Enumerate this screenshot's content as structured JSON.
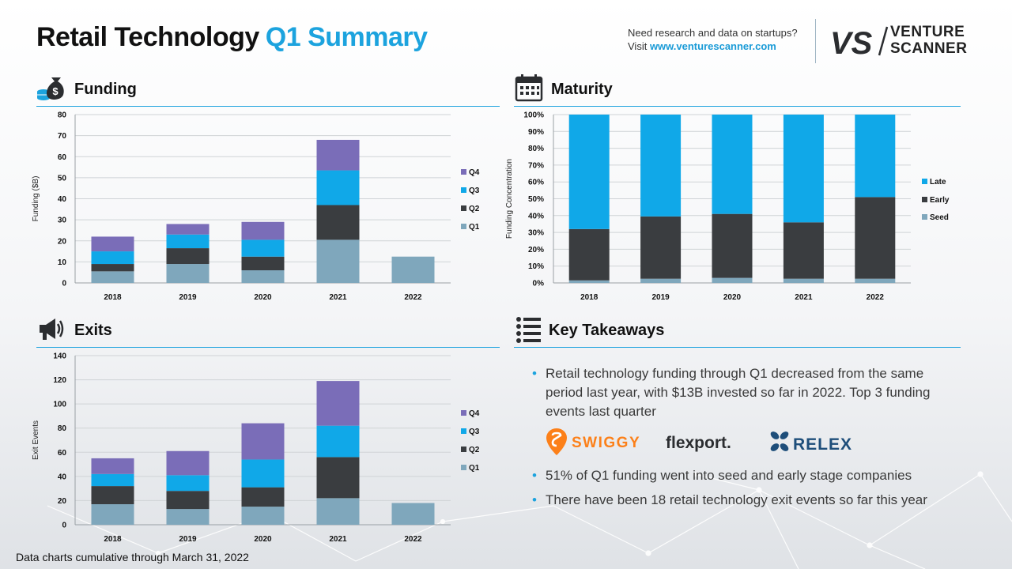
{
  "header": {
    "title": "Retail Technology",
    "title_accent": "Q1 Summary",
    "promo_line1": "Need research and data on startups?",
    "promo_prefix": "Visit ",
    "promo_link": "www.venturescanner.com",
    "logo_mark": "VS",
    "logo_line1": "VENTURE",
    "logo_line2": "SCANNER"
  },
  "sections": {
    "funding": "Funding",
    "maturity": "Maturity",
    "exits": "Exits",
    "takeaways": "Key Takeaways"
  },
  "icons": {
    "funding": "money-bag-icon",
    "maturity": "calendar-icon",
    "exits": "megaphone-icon",
    "takeaways": "list-icon"
  },
  "colors": {
    "accent": "#1ca3de",
    "q1": "#7fa7bc",
    "q2": "#3a3d40",
    "q3": "#10a8e8",
    "q4": "#7a6db8",
    "seed": "#7fa7bc",
    "early": "#3a3d40",
    "late": "#10a8e8"
  },
  "takeaways": {
    "bullets": [
      "Retail technology funding through Q1 decreased from the same period last year, with $13B invested so far in 2022. Top 3 funding events last quarter",
      "51% of Q1 funding went into seed and early stage companies",
      "There have been 18 retail technology exit events so far this year"
    ],
    "companies": [
      "SWIGGY",
      "flexport.",
      "RELEX"
    ]
  },
  "footer": "Data charts cumulative through March 31, 2022",
  "chart_data": [
    {
      "id": "funding",
      "type": "bar",
      "stacked": true,
      "categories": [
        "2018",
        "2019",
        "2020",
        "2021",
        "2022"
      ],
      "ylabel": "Funding ($B)",
      "ylim": [
        0,
        80
      ],
      "yticks": [
        0,
        10,
        20,
        30,
        40,
        50,
        60,
        70,
        80
      ],
      "grid": true,
      "legend": "right",
      "series": [
        {
          "name": "Q1",
          "color": "#7fa7bc",
          "values": [
            5.5,
            9,
            6,
            20.5,
            12.5
          ]
        },
        {
          "name": "Q2",
          "color": "#3a3d40",
          "values": [
            3.5,
            7.5,
            6.5,
            16.5,
            0
          ]
        },
        {
          "name": "Q3",
          "color": "#10a8e8",
          "values": [
            6,
            6.5,
            8,
            16.5,
            0
          ]
        },
        {
          "name": "Q4",
          "color": "#7a6db8",
          "values": [
            7,
            5,
            8.5,
            14.5,
            0
          ]
        }
      ]
    },
    {
      "id": "maturity",
      "type": "bar",
      "stacked": true,
      "categories": [
        "2018",
        "2019",
        "2020",
        "2021",
        "2022"
      ],
      "ylabel": "Funding Concentration",
      "ylim": [
        0,
        100
      ],
      "yticks": [
        "0%",
        "10%",
        "20%",
        "30%",
        "40%",
        "50%",
        "60%",
        "70%",
        "80%",
        "90%",
        "100%"
      ],
      "grid": true,
      "legend": "right",
      "series": [
        {
          "name": "Seed",
          "color": "#7fa7bc",
          "values": [
            1.5,
            2.5,
            3,
            2.5,
            2.5
          ]
        },
        {
          "name": "Early",
          "color": "#3a3d40",
          "values": [
            30.5,
            37,
            38,
            33.5,
            48.5
          ]
        },
        {
          "name": "Late",
          "color": "#10a8e8",
          "values": [
            68,
            60.5,
            59,
            64,
            49
          ]
        }
      ]
    },
    {
      "id": "exits",
      "type": "bar",
      "stacked": true,
      "categories": [
        "2018",
        "2019",
        "2020",
        "2021",
        "2022"
      ],
      "ylabel": "Exit Events",
      "ylim": [
        0,
        140
      ],
      "yticks": [
        0,
        20,
        40,
        60,
        80,
        100,
        120,
        140
      ],
      "grid": true,
      "legend": "right",
      "series": [
        {
          "name": "Q1",
          "color": "#7fa7bc",
          "values": [
            17,
            13,
            15,
            22,
            18
          ]
        },
        {
          "name": "Q2",
          "color": "#3a3d40",
          "values": [
            15,
            15,
            16,
            34,
            0
          ]
        },
        {
          "name": "Q3",
          "color": "#10a8e8",
          "values": [
            10,
            13,
            23,
            26,
            0
          ]
        },
        {
          "name": "Q4",
          "color": "#7a6db8",
          "values": [
            13,
            20,
            30,
            37,
            0
          ]
        }
      ]
    }
  ]
}
